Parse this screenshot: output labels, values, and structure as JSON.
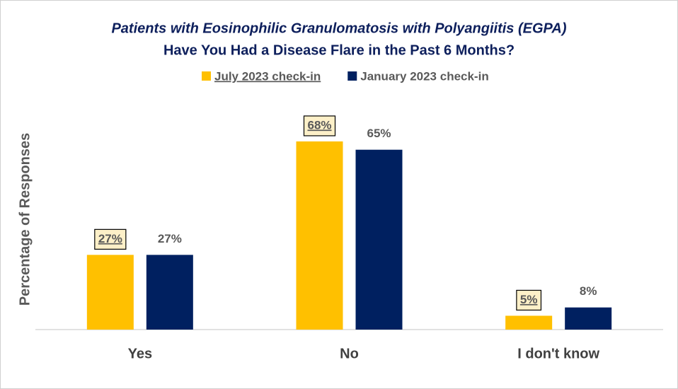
{
  "chart_data": {
    "type": "bar",
    "title": "Patients with Eosinophilic Granulomatosis  with Polyangiitis (EGPA)",
    "subtitle": "Have You Had a Disease Flare in the Past 6 Months?",
    "y_label": "Percentage of Responses",
    "categories": [
      "Yes",
      "No",
      "I don't know"
    ],
    "series": [
      {
        "name": "July 2023 check-in",
        "color": "#ffc000",
        "values": [
          27,
          68,
          5
        ],
        "value_labels": [
          "27%",
          "68%",
          "5%"
        ]
      },
      {
        "name": "January 2023 check-in",
        "color": "#002060",
        "values": [
          27,
          65,
          8
        ],
        "value_labels": [
          "27%",
          "65%",
          "8%"
        ]
      }
    ],
    "ylim": [
      0,
      80
    ]
  }
}
